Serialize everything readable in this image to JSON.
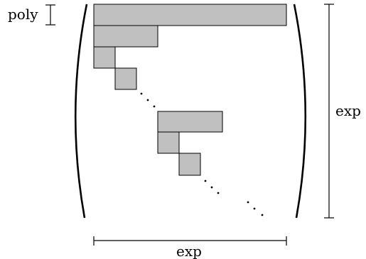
{
  "labels": {
    "poly": "poly",
    "exp_right": "exp",
    "exp_bottom": "exp"
  },
  "colors": {
    "block_fill": "#c0c0c0",
    "stroke": "#000000",
    "background": "#ffffff"
  }
}
